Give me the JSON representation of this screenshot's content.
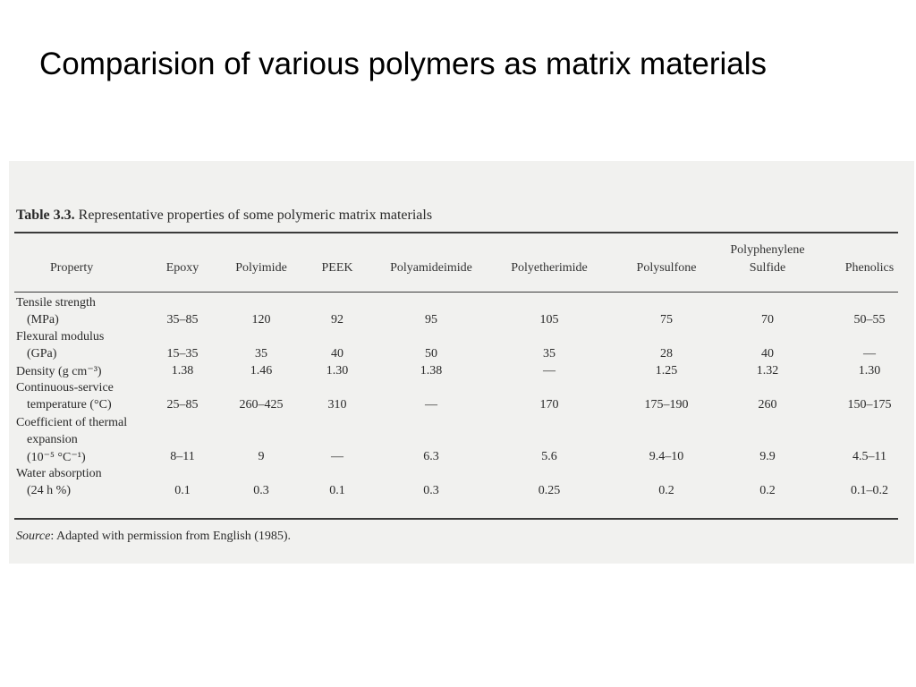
{
  "slide": {
    "title": "Comparision of various polymers as matrix materials"
  },
  "table": {
    "label": "Table 3.3.",
    "caption": "Representative properties of some polymeric matrix materials",
    "headers": {
      "property": "Property",
      "columns": [
        "Epoxy",
        "Polyimide",
        "PEEK",
        "Polyamideimide",
        "Polyetherimide",
        "Polysulfone",
        "Polyphenylene Sulfide",
        "Phenolics"
      ],
      "pps_line1": "Polyphenylene",
      "pps_line2": "Sulfide"
    },
    "rows": [
      {
        "label_lines": [
          "Tensile strength",
          "(MPa)"
        ],
        "values": [
          "35–85",
          "120",
          "92",
          "95",
          "105",
          "75",
          "70",
          "50–55"
        ]
      },
      {
        "label_lines": [
          "Flexural modulus",
          "(GPa)"
        ],
        "values": [
          "15–35",
          "35",
          "40",
          "50",
          "35",
          "28",
          "40",
          "—"
        ]
      },
      {
        "label_lines": [
          "Density (g cm⁻³)"
        ],
        "values": [
          "1.38",
          "1.46",
          "1.30",
          "1.38",
          "—",
          "1.25",
          "1.32",
          "1.30"
        ]
      },
      {
        "label_lines": [
          "Continuous-service",
          "temperature (°C)"
        ],
        "values": [
          "25–85",
          "260–425",
          "310",
          "—",
          "170",
          "175–190",
          "260",
          "150–175"
        ]
      },
      {
        "label_lines": [
          "Coefficient of thermal",
          "expansion",
          "(10⁻⁵ °C⁻¹)"
        ],
        "values": [
          "8–11",
          "9",
          "—",
          "6.3",
          "5.6",
          "9.4–10",
          "9.9",
          "4.5–11"
        ]
      },
      {
        "label_lines": [
          "Water absorption",
          "(24 h %)"
        ],
        "values": [
          "0.1",
          "0.3",
          "0.1",
          "0.3",
          "0.25",
          "0.2",
          "0.2",
          "0.1–0.2"
        ]
      }
    ],
    "source_label": "Source",
    "source_text": ": Adapted with permission from English (1985)."
  }
}
